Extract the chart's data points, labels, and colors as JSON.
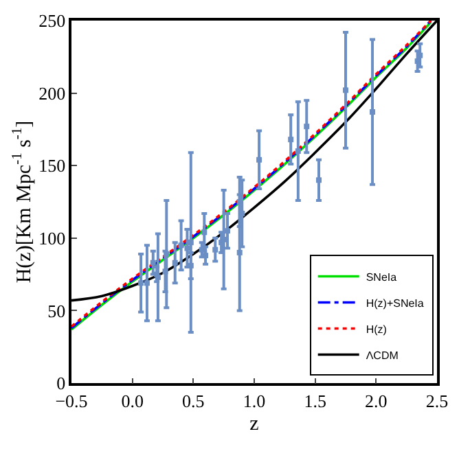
{
  "chart_data": {
    "type": "line",
    "xlabel": "z",
    "ylabel": "H(z)[Km Mpc$^{-1}$ s$^{-1}$]",
    "xlim": [
      -0.5,
      2.5
    ],
    "ylim": [
      0,
      250
    ],
    "xticks": [
      {
        "value": -0.5,
        "label": "−0.5"
      },
      {
        "value": 0,
        "label": "0.0"
      },
      {
        "value": 0.5,
        "label": "0.5"
      },
      {
        "value": 1,
        "label": "1.0"
      },
      {
        "value": 1.5,
        "label": "1.5"
      },
      {
        "value": 2,
        "label": "2.0"
      },
      {
        "value": 2.5,
        "label": "2.5"
      }
    ],
    "yticks": [
      0,
      50,
      100,
      150,
      200,
      250
    ],
    "legend": "bottom right",
    "series": [
      {
        "name": "SNeIa",
        "color": "#00e000",
        "line_style": "solid",
        "x": [
          -0.5,
          -0.25,
          0,
          0.25,
          0.5,
          0.75,
          1,
          1.25,
          1.5,
          1.75,
          2,
          2.25,
          2.45
        ],
        "values": [
          37,
          54,
          70,
          85,
          100,
          116,
          133,
          151,
          170,
          190,
          211,
          231,
          249
        ]
      },
      {
        "name": "H(z)+SNeIa",
        "color": "#0000ff",
        "line_style": "dashdot",
        "x": [
          -0.5,
          -0.25,
          0,
          0.25,
          0.5,
          0.75,
          1,
          1.25,
          1.5,
          1.75,
          2,
          2.25,
          2.45
        ],
        "values": [
          38,
          55,
          71,
          86,
          101,
          117,
          134,
          152,
          171,
          191,
          212,
          232,
          250
        ]
      },
      {
        "name": "H(z)",
        "color": "#ff0000",
        "line_style": "dotted",
        "x": [
          -0.5,
          -0.25,
          0,
          0.25,
          0.5,
          0.75,
          1,
          1.25,
          1.5,
          1.75,
          2,
          2.25,
          2.45
        ],
        "values": [
          39,
          56,
          72,
          87,
          102,
          118,
          135,
          153,
          172,
          192,
          213,
          233,
          250
        ]
      },
      {
        "name": "ΛCDM",
        "color": "#000000",
        "line_style": "solid",
        "x": [
          -0.5,
          -0.25,
          0,
          0.25,
          0.5,
          0.75,
          1,
          1.25,
          1.5,
          1.75,
          2,
          2.25,
          2.5
        ],
        "values": [
          57,
          60,
          67,
          76,
          89,
          104,
          121,
          139,
          159,
          180,
          203,
          227,
          250
        ]
      },
      {
        "type": "scatter",
        "color": "#6b8fc4",
        "marker": "square",
        "x": [
          0.07,
          0.12,
          0.17,
          0.2,
          0.21,
          0.27,
          0.28,
          0.35,
          0.4,
          0.45,
          0.48,
          0.48,
          0.57,
          0.59,
          0.6,
          0.68,
          0.73,
          0.75,
          0.78,
          0.88,
          0.88,
          0.9,
          1.04,
          1.3,
          1.36,
          1.43,
          1.53,
          1.75,
          1.97,
          2.34,
          2.36
        ],
        "values": [
          69,
          69,
          83,
          75,
          73,
          77,
          89,
          83,
          95,
          93,
          81,
          97,
          92,
          104,
          88,
          92,
          97,
          99,
          105,
          125,
          90,
          117,
          154,
          168,
          160,
          177,
          140,
          202,
          187,
          222,
          226
        ],
        "errors": [
          20,
          26,
          8,
          5,
          30,
          14,
          37,
          14,
          17,
          13,
          9,
          62,
          5,
          13,
          6,
          8,
          7,
          34,
          12,
          17,
          40,
          23,
          20,
          17,
          34,
          18,
          14,
          40,
          50,
          7,
          8
        ]
      }
    ]
  }
}
